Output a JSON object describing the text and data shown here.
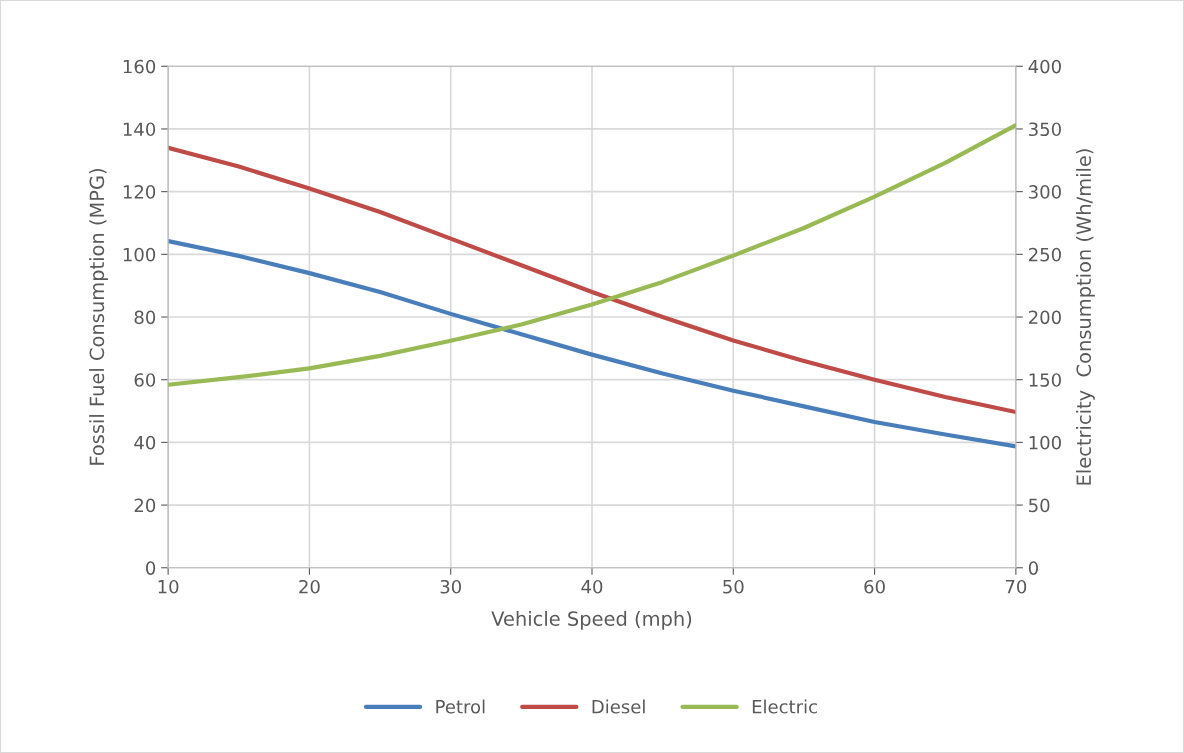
{
  "chart_data": {
    "type": "line",
    "xlabel": "Vehicle Speed (mph)",
    "ylabel": "Fossil Fuel Consumption (MPG)",
    "y2label": "Electricity  Consumption (Wh/mile)",
    "x": [
      10,
      15,
      20,
      25,
      30,
      35,
      40,
      45,
      50,
      55,
      60,
      65,
      70
    ],
    "xlim": [
      10,
      70
    ],
    "xticks": [
      10,
      20,
      30,
      40,
      50,
      60,
      70
    ],
    "ylim": [
      0,
      160
    ],
    "yticks": [
      0,
      20,
      40,
      60,
      80,
      100,
      120,
      140,
      160
    ],
    "y2lim": [
      0,
      400
    ],
    "y2ticks": [
      0,
      50,
      100,
      150,
      200,
      250,
      300,
      350,
      400
    ],
    "grid": true,
    "legend": "bottom",
    "marker": "none",
    "line_style": "solid",
    "series": [
      {
        "name": "Petrol",
        "color": "#4a7ebb",
        "values": [
          104.2,
          99.5,
          94,
          88,
          81,
          74.5,
          68,
          62,
          56.5,
          51.5,
          46.5,
          42.5,
          38.7
        ]
      },
      {
        "name": "Diesel",
        "color": "#be4b48",
        "values": [
          134,
          128,
          121,
          113.5,
          105,
          96.5,
          88,
          80,
          72.5,
          66,
          60,
          54.5,
          49.7
        ]
      },
      {
        "name": "Electric",
        "color": "#98b954",
        "axis": "y2",
        "values": [
          146,
          152,
          159,
          169,
          181,
          194,
          210,
          228,
          249,
          271,
          296,
          323,
          353
        ]
      }
    ]
  }
}
